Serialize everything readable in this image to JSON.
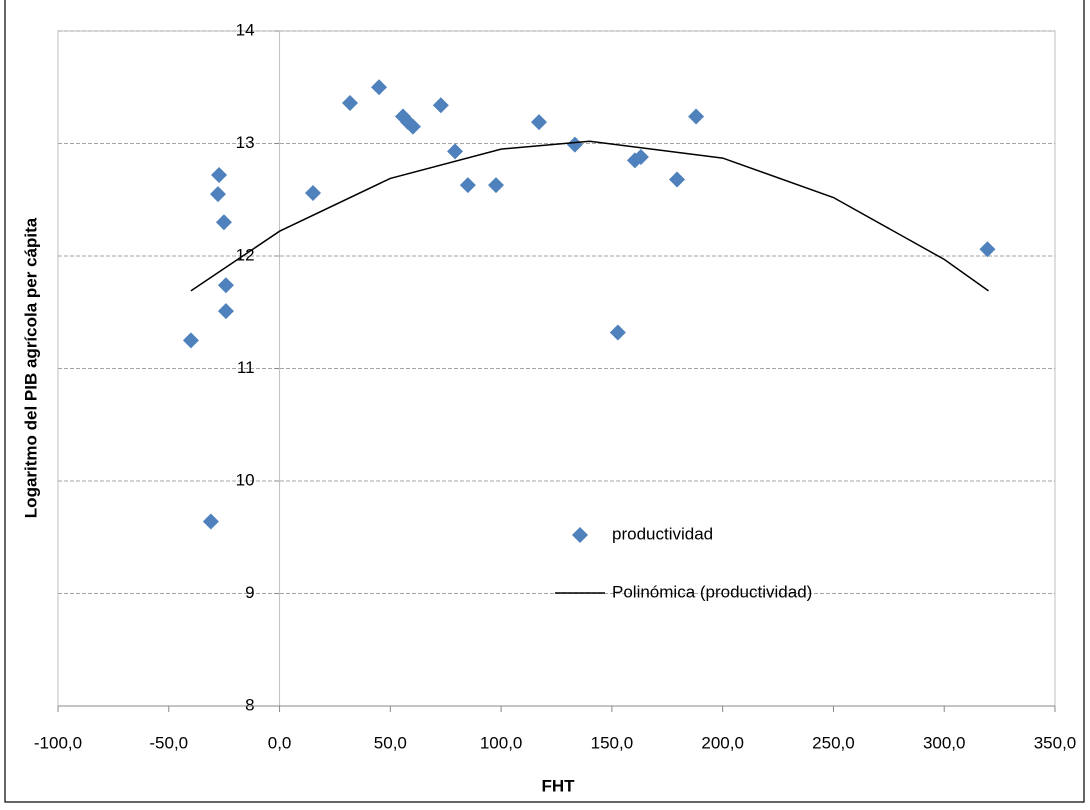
{
  "chart_data": {
    "type": "scatter",
    "x_label": "FHT",
    "y_label": "Logaritmo del PIB agrícola per cápita",
    "xlim": [
      -100,
      350
    ],
    "xticks": [
      {
        "value": -100,
        "label": "-100,0"
      },
      {
        "value": -50,
        "label": "-50,0"
      },
      {
        "value": 0,
        "label": "0,0"
      },
      {
        "value": 50,
        "label": "50,0"
      },
      {
        "value": 100,
        "label": "100,0"
      },
      {
        "value": 150,
        "label": "150,0"
      },
      {
        "value": 200,
        "label": "200,0"
      },
      {
        "value": 250,
        "label": "250,0"
      },
      {
        "value": 300,
        "label": "300,0"
      },
      {
        "value": 350,
        "label": "350,0"
      }
    ],
    "ylim": [
      8,
      14
    ],
    "yticks": [
      8,
      9,
      10,
      11,
      12,
      13,
      14
    ],
    "grid": true,
    "series": [
      {
        "name": "productividad",
        "color": "#4f81bd",
        "x": [
          -40.0,
          -31.0,
          -27.3,
          -27.8,
          -25.1,
          -24.2,
          -24.2,
          15.1,
          31.8,
          44.9,
          55.7,
          58.0,
          60.2,
          72.8,
          79.2,
          85.0,
          97.7,
          117.1,
          133.3,
          152.7,
          160.4,
          163.1,
          179.4,
          188.0,
          319.5
        ],
        "values": [
          11.25,
          9.64,
          12.72,
          12.55,
          12.3,
          11.74,
          11.51,
          12.56,
          13.36,
          13.5,
          13.24,
          13.19,
          13.15,
          13.34,
          12.93,
          12.63,
          12.63,
          13.19,
          12.99,
          11.32,
          12.85,
          12.88,
          12.68,
          13.24,
          12.06
        ]
      }
    ],
    "trendline": {
      "name": "Polinómica (productividad)",
      "color": "#000000",
      "x": [
        -40,
        0,
        50,
        100,
        140,
        200,
        250,
        300,
        320
      ],
      "values": [
        11.69,
        12.22,
        12.69,
        12.95,
        13.02,
        12.87,
        12.52,
        11.97,
        11.69
      ]
    }
  }
}
